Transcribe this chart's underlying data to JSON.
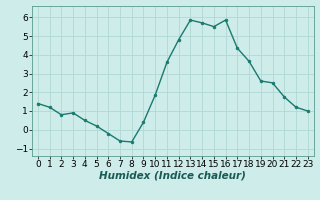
{
  "x": [
    0,
    1,
    2,
    3,
    4,
    5,
    6,
    7,
    8,
    9,
    10,
    11,
    12,
    13,
    14,
    15,
    16,
    17,
    18,
    19,
    20,
    21,
    22,
    23
  ],
  "y": [
    1.4,
    1.2,
    0.8,
    0.9,
    0.5,
    0.2,
    -0.2,
    -0.6,
    -0.65,
    0.4,
    1.85,
    3.6,
    4.8,
    5.85,
    5.7,
    5.5,
    5.85,
    4.35,
    3.65,
    2.6,
    2.5,
    1.75,
    1.2,
    1.0
  ],
  "line_color": "#1a7a6e",
  "marker": "o",
  "marker_size": 2.0,
  "line_width": 1.0,
  "bg_color": "#ceecea",
  "grid_color": "#b0d8d4",
  "xlabel": "Humidex (Indice chaleur)",
  "xlabel_fontsize": 7.5,
  "xlabel_fontstyle": "italic",
  "xlabel_fontweight": "bold",
  "xlim": [
    -0.5,
    23.5
  ],
  "ylim": [
    -1.4,
    6.6
  ],
  "yticks": [
    -1,
    0,
    1,
    2,
    3,
    4,
    5,
    6
  ],
  "xticks": [
    0,
    1,
    2,
    3,
    4,
    5,
    6,
    7,
    8,
    9,
    10,
    11,
    12,
    13,
    14,
    15,
    16,
    17,
    18,
    19,
    20,
    21,
    22,
    23
  ],
  "tick_fontsize": 6.5
}
